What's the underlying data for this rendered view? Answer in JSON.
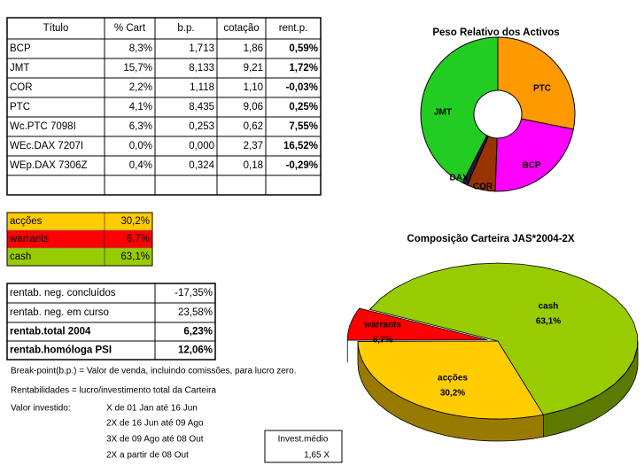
{
  "main_table": {
    "header": [
      "Título",
      "% Cart",
      "b.p.",
      "cotação",
      "rent.p."
    ],
    "rows": [
      [
        "BCP",
        "8,3%",
        "1,713",
        "1,86",
        "0,59%"
      ],
      [
        "JMT",
        "15,7%",
        "8,133",
        "9,21",
        "1,72%"
      ],
      [
        "COR",
        "2,2%",
        "1,118",
        "1,10",
        "-0,03%"
      ],
      [
        "PTC",
        "4,1%",
        "8,435",
        "9,06",
        "0,25%"
      ],
      [
        "Wc.PTC 7098I",
        "6,3%",
        "0,253",
        "0,62",
        "7,55%"
      ],
      [
        "WEc.DAX 7207I",
        "0,0%",
        "0,000",
        "2,37",
        "16,52%"
      ],
      [
        "WEp.DAX 7306Z",
        "0,4%",
        "0,324",
        "0,18",
        "-0,29%"
      ]
    ]
  },
  "allocation_table": {
    "rows": [
      [
        "acções",
        "30,2%"
      ],
      [
        "warrants",
        "6,7%"
      ],
      [
        "cash",
        "63,1%"
      ]
    ]
  },
  "returns_table": {
    "rows": [
      [
        "rentab. neg. concluídos",
        "-17,35%"
      ],
      [
        "rentab. neg. em curso",
        "23,58%"
      ],
      [
        "rentab.total 2004",
        "6,23%"
      ],
      [
        "rentab.homóloga PSI",
        "12,06%"
      ]
    ]
  },
  "notes": {
    "break_point": "Break-point(b.p.) = Valor de venda, incluindo comissões, para lucro zero.",
    "returns": "Rentabilidades = lucro/investimento total da Carteira",
    "invested_label": "Valor investido:",
    "invested_periods": [
      "X de 01 Jan até 16 Jun",
      "2X de 16 Jun até 09 Ago",
      "3X de 09 Ago até 08 Out",
      "2X a partir de 08 Out"
    ]
  },
  "average": {
    "label": "Invest.médio",
    "value": "1,65 X"
  },
  "chart_data": [
    {
      "type": "donut",
      "title": "Peso Relativo dos Activos",
      "categories": [
        "PTC",
        "BCP",
        "COR",
        "DAX",
        "JMT"
      ],
      "values": [
        10.4,
        8.3,
        2.2,
        0.4,
        15.7
      ],
      "colors": [
        "#ff9900",
        "#ff00ff",
        "#993300",
        "#1a1a40",
        "#22cc22"
      ]
    },
    {
      "type": "pie3d",
      "title": "Composição Carteira JAS*2004-2X",
      "categories": [
        "acções",
        "warrants",
        "cash"
      ],
      "values": [
        30.2,
        6.7,
        63.1
      ],
      "value_labels": [
        "30,2%",
        "6,7%",
        "63,1%"
      ],
      "colors": [
        "#ffcc00",
        "#ff0000",
        "#99cc00"
      ]
    }
  ]
}
